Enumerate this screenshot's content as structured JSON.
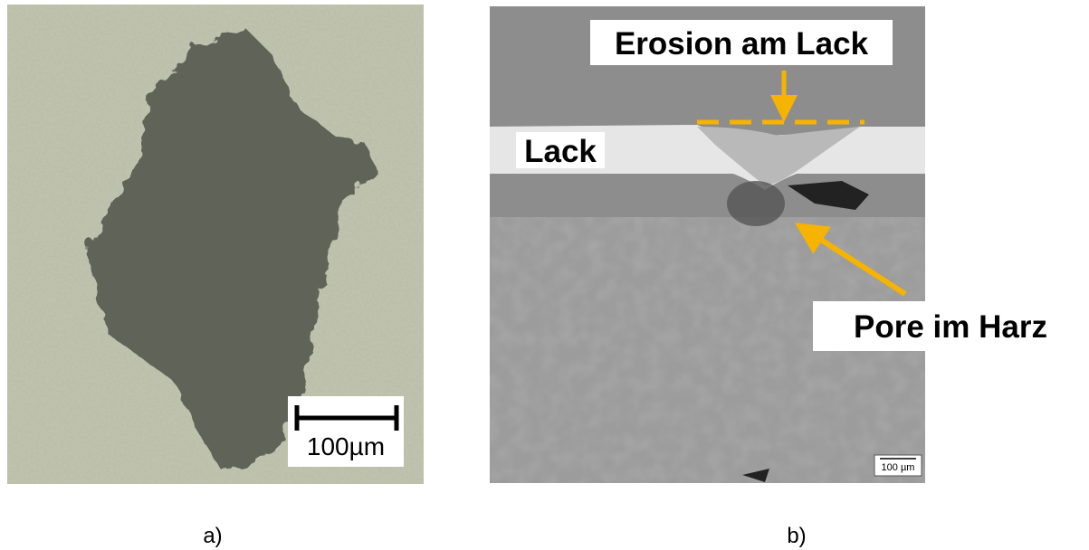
{
  "panels": [
    {
      "label": "a)",
      "scale_bar": "100µm"
    },
    {
      "label": "b)",
      "annotations": {
        "erosion": "Erosion am Lack",
        "coating": "Lack",
        "pore": "Pore im Harz"
      },
      "scale_bar": "100 µm"
    }
  ]
}
